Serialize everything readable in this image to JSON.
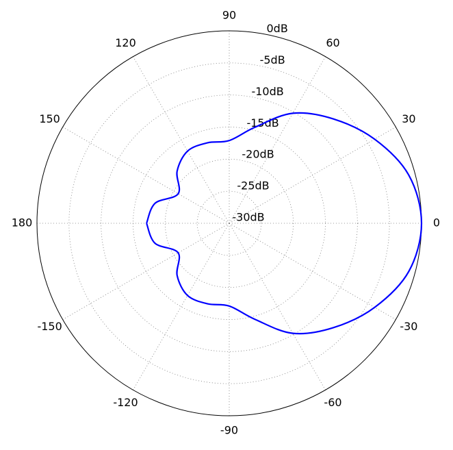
{
  "chart_data": {
    "type": "polar",
    "x": [
      -180,
      -165,
      -150,
      -135,
      -120,
      -105,
      -90,
      -75,
      -60,
      -45,
      -30,
      -15,
      0,
      15,
      30,
      45,
      60,
      75,
      90,
      105,
      120,
      135,
      150,
      165,
      180
    ],
    "series": [
      {
        "color": "#0000ff",
        "values": [
          -17.1,
          -18.0,
          -20.8,
          -18.5,
          -17.0,
          -17.0,
          -17.1,
          -14.5,
          -10.2,
          -7.0,
          -3.8,
          -1.0,
          0,
          -1.0,
          -3.8,
          -7.0,
          -10.2,
          -14.5,
          -17.1,
          -17.0,
          -17.0,
          -18.5,
          -20.8,
          -18.0,
          -17.1
        ]
      }
    ],
    "ylim": [
      -30,
      0
    ],
    "yticks": [
      {
        "value": -30,
        "label": "-30dB"
      },
      {
        "value": -25,
        "label": "-25dB"
      },
      {
        "value": -20,
        "label": "-20dB"
      },
      {
        "value": -15,
        "label": "-15dB"
      },
      {
        "value": -10,
        "label": "-10dB"
      },
      {
        "value": -5,
        "label": "-5dB"
      },
      {
        "value": 0,
        "label": "0dB"
      }
    ],
    "xticks": [
      0,
      30,
      60,
      90,
      120,
      150,
      180,
      -150,
      -120,
      -90,
      -60,
      -30
    ],
    "grid": true
  }
}
